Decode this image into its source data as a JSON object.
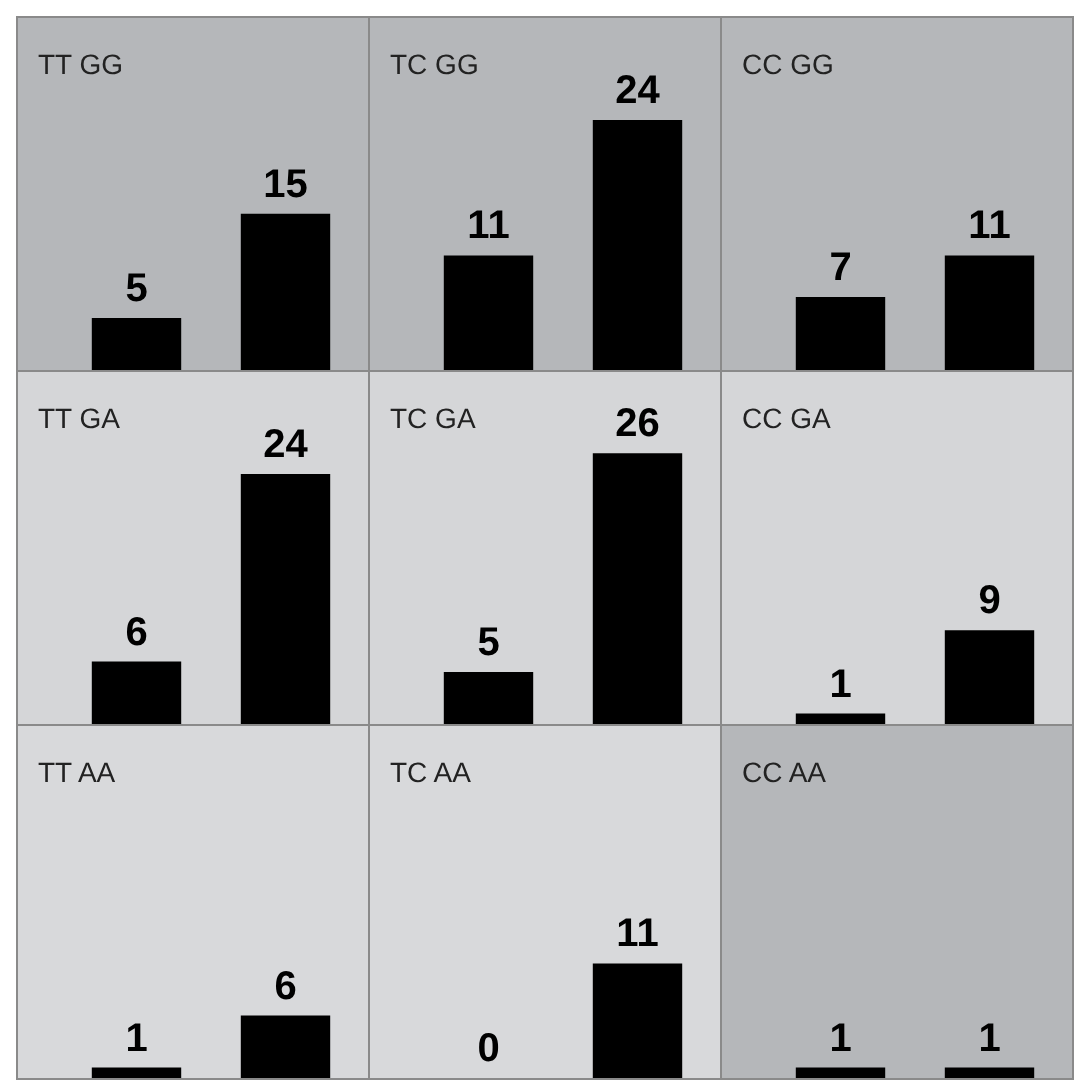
{
  "chart_data": [
    {
      "type": "bar",
      "title": "TT GG",
      "categories": [
        null,
        null
      ],
      "values": [
        5,
        15
      ],
      "color": "#000000",
      "data_labels": true
    },
    {
      "type": "bar",
      "title": "TC GG",
      "categories": [
        null,
        null
      ],
      "values": [
        11,
        24
      ],
      "color": "#000000",
      "data_labels": true
    },
    {
      "type": "bar",
      "title": "CC GG",
      "categories": [
        null,
        null
      ],
      "values": [
        7,
        11
      ],
      "color": "#000000",
      "data_labels": true
    },
    {
      "type": "bar",
      "title": "TT GA",
      "categories": [
        null,
        null
      ],
      "values": [
        6,
        24
      ],
      "color": "#000000",
      "data_labels": true
    },
    {
      "type": "bar",
      "title": "TC GA",
      "categories": [
        null,
        null
      ],
      "values": [
        5,
        26
      ],
      "color": "#000000",
      "data_labels": true
    },
    {
      "type": "bar",
      "title": "CC GA",
      "categories": [
        null,
        null
      ],
      "values": [
        1,
        9
      ],
      "color": "#000000",
      "data_labels": true
    },
    {
      "type": "bar",
      "title": "TT AA",
      "categories": [
        null,
        null
      ],
      "values": [
        1,
        6
      ],
      "color": "#000000",
      "data_labels": true
    },
    {
      "type": "bar",
      "title": "TC AA",
      "categories": [
        null,
        null
      ],
      "values": [
        0,
        11
      ],
      "color": "#000000",
      "data_labels": true
    },
    {
      "type": "bar",
      "title": "CC AA",
      "categories": [
        null,
        null
      ],
      "values": [
        1,
        1
      ],
      "color": "#000000",
      "data_labels": true
    }
  ]
}
